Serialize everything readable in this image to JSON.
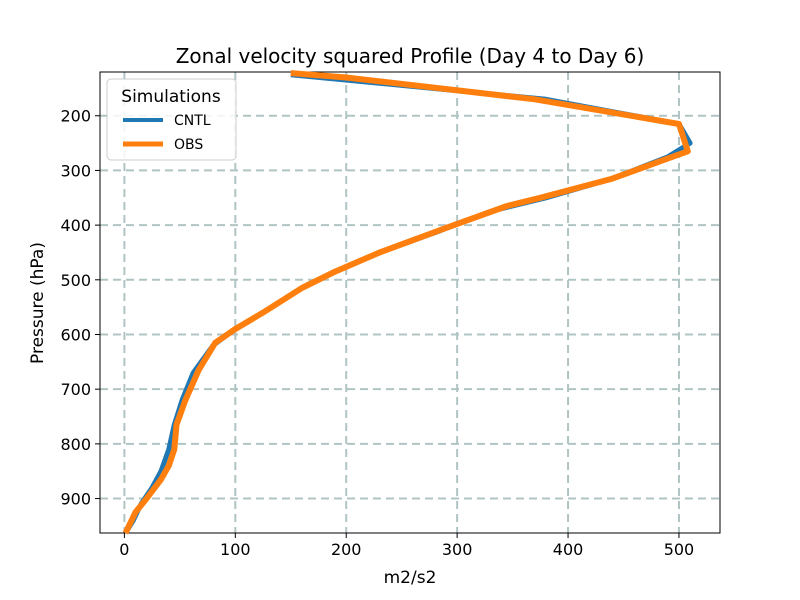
{
  "chart_data": {
    "type": "line",
    "title": "Zonal velocity squared Profile (Day 4 to Day 6)",
    "xlabel": "m2/s2",
    "ylabel": "Pressure (hPa)",
    "xlim": [
      -22,
      537
    ],
    "ylim": [
      963,
      120
    ],
    "y_inverted": true,
    "grid": true,
    "xticks": [
      0,
      100,
      200,
      300,
      400,
      500
    ],
    "yticks": [
      200,
      300,
      400,
      500,
      600,
      700,
      800,
      900
    ],
    "legend": {
      "title": "Simulations",
      "position": "upper-left"
    },
    "series": [
      {
        "name": "CNTL",
        "color": "#1f77b4",
        "points": [
          [
            150,
            125
          ],
          [
            380,
            170
          ],
          [
            500,
            215
          ],
          [
            510,
            250
          ],
          [
            490,
            275
          ],
          [
            440,
            315
          ],
          [
            380,
            350
          ],
          [
            330,
            375
          ],
          [
            285,
            410
          ],
          [
            230,
            450
          ],
          [
            190,
            485
          ],
          [
            160,
            515
          ],
          [
            125,
            560
          ],
          [
            100,
            590
          ],
          [
            80,
            620
          ],
          [
            62,
            670
          ],
          [
            52,
            720
          ],
          [
            45,
            765
          ],
          [
            40,
            810
          ],
          [
            33,
            850
          ],
          [
            25,
            880
          ],
          [
            15,
            910
          ],
          [
            8,
            940
          ],
          [
            1,
            963
          ]
        ]
      },
      {
        "name": "OBS",
        "color": "#ff7f0e",
        "points": [
          [
            150,
            122
          ],
          [
            200,
            130
          ],
          [
            370,
            170
          ],
          [
            500,
            215
          ],
          [
            508,
            265
          ],
          [
            490,
            278
          ],
          [
            440,
            315
          ],
          [
            375,
            350
          ],
          [
            345,
            365
          ],
          [
            290,
            405
          ],
          [
            230,
            450
          ],
          [
            190,
            485
          ],
          [
            160,
            515
          ],
          [
            125,
            560
          ],
          [
            100,
            590
          ],
          [
            82,
            615
          ],
          [
            67,
            665
          ],
          [
            55,
            720
          ],
          [
            47,
            765
          ],
          [
            45,
            810
          ],
          [
            40,
            840
          ],
          [
            33,
            865
          ],
          [
            20,
            900
          ],
          [
            10,
            925
          ],
          [
            1,
            963
          ]
        ]
      }
    ]
  }
}
